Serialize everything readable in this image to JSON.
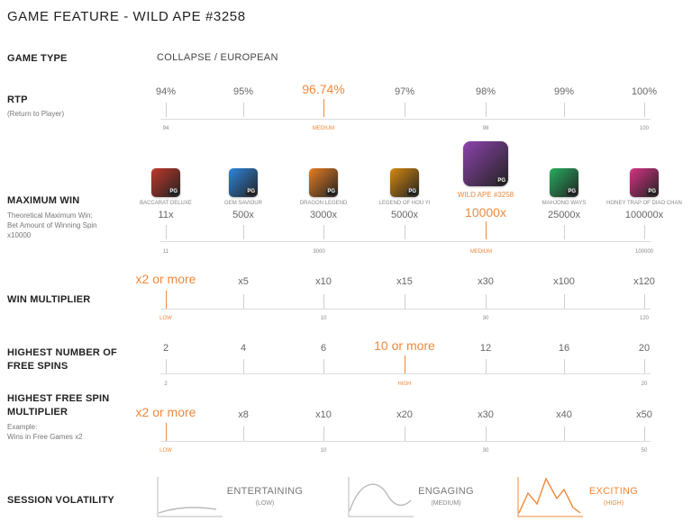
{
  "title": "GAME FEATURE - WILD APE #3258",
  "game_type": {
    "label": "GAME TYPE",
    "value": "COLLAPSE / EUROPEAN"
  },
  "rtp": {
    "label": "RTP",
    "sub": "(Return to Player)",
    "values": [
      "94%",
      "95%",
      "96.74%",
      "97%",
      "98%",
      "99%",
      "100%"
    ],
    "highlight_index": 2,
    "scale": [
      "94",
      "MEDIUM",
      "98",
      "100"
    ]
  },
  "max_win": {
    "label": "MAXIMUM WIN",
    "sub": [
      "Theoretical Maximum Win:",
      "Bet Amount of Winning Spin",
      "x10000"
    ],
    "games": [
      {
        "name": "BACCARAT DELUXE",
        "value": "11x",
        "icon": "baccarat-deluxe-icon",
        "color": "#c0392b"
      },
      {
        "name": "GEM SAVIOUR",
        "value": "500x",
        "icon": "gem-saviour-icon",
        "color": "#2e86de"
      },
      {
        "name": "DRAGON LEGEND",
        "value": "3000x",
        "icon": "dragon-legend-icon",
        "color": "#e67e22"
      },
      {
        "name": "LEGEND OF HOU YI",
        "value": "5000x",
        "icon": "legend-of-hou-yi-icon",
        "color": "#d68910"
      },
      {
        "name": "WILD APE #3258",
        "value": "10000x",
        "icon": "wild-ape-icon",
        "color": "#8e44ad"
      },
      {
        "name": "MAHJONG WAYS",
        "value": "25000x",
        "icon": "mahjong-ways-icon",
        "color": "#27ae60"
      },
      {
        "name": "HONEY TRAP OF DIAO CHAN",
        "value": "100000x",
        "icon": "honey-trap-icon",
        "color": "#d63384"
      }
    ],
    "highlight_index": 4,
    "pg": "PG",
    "scale": [
      "11",
      "3000",
      "MEDIUM",
      "100000"
    ]
  },
  "win_mult": {
    "label": "WIN MULTIPLIER",
    "values": [
      "x2 or more",
      "x5",
      "x10",
      "x15",
      "x30",
      "x100",
      "x120"
    ],
    "highlight_index": 0,
    "scale": [
      "LOW",
      "10",
      "30",
      "120"
    ]
  },
  "free_spins": {
    "label": "HIGHEST NUMBER OF FREE SPINS",
    "values": [
      "2",
      "4",
      "6",
      "10 or more",
      "12",
      "16",
      "20"
    ],
    "highlight_index": 3,
    "scale": [
      "2",
      "HIGH",
      "20"
    ]
  },
  "free_mult": {
    "label": "HIGHEST FREE SPIN MULTIPLIER",
    "sub": [
      "Example:",
      "Wins in Free Games x2"
    ],
    "values": [
      "x2 or more",
      "x8",
      "x10",
      "x20",
      "x30",
      "x40",
      "x50"
    ],
    "highlight_index": 0,
    "scale": [
      "LOW",
      "10",
      "30",
      "50"
    ]
  },
  "volatility": {
    "label": "SESSION VOLATILITY",
    "options": [
      {
        "name": "ENTERTAINING",
        "level": "(LOW)"
      },
      {
        "name": "ENGAGING",
        "level": "(MEDIUM)"
      },
      {
        "name": "EXCITING",
        "level": "(HIGH)"
      }
    ],
    "highlight_index": 2
  },
  "colors": {
    "accent": "#f0883a",
    "text": "#333333",
    "muted": "#888888",
    "line": "#dcdcdc"
  }
}
